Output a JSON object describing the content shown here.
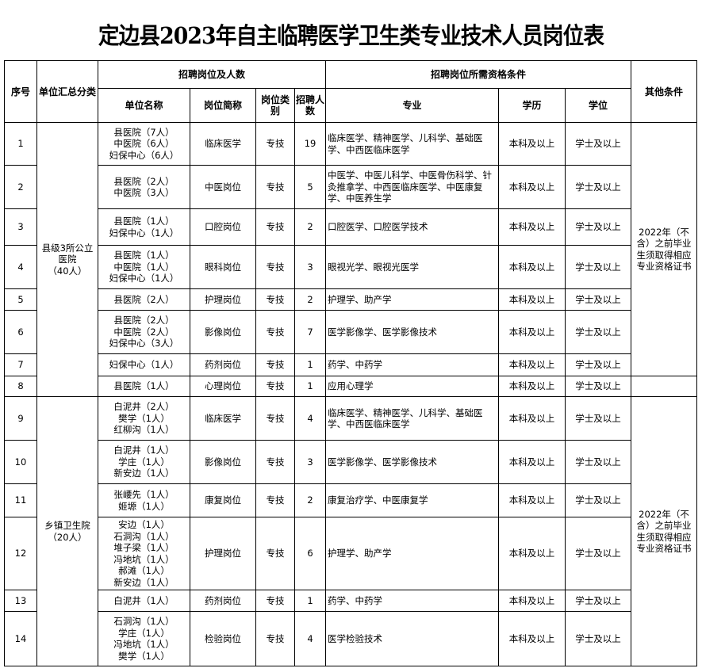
{
  "title": "定边县2023年自主临聘医学卫生类专业技术人员岗位表",
  "headers": {
    "seq": "序号",
    "group": "单位汇总分类",
    "recruit_group": "招聘岗位及人数",
    "unit": "单位名称",
    "post": "岗位简称",
    "type": "岗位类别",
    "count": "招聘人数",
    "req_group": "招聘岗位所需资格条件",
    "major": "专业",
    "education": "学历",
    "degree": "学位",
    "other": "其他条件"
  },
  "groups": [
    {
      "name": "县级3所公立医院（40人）",
      "lines": [
        "县级3所公立",
        "医院",
        "（40人）"
      ]
    },
    {
      "name": "乡镇卫生院（20人）",
      "lines": [
        "乡镇卫生院",
        "（20人）"
      ]
    }
  ],
  "other_conditions": [
    "2022年（不含）之前毕业生须取得相应专业资格证书",
    "",
    "2022年（不含）之前毕业生须取得相应专业资格证书"
  ],
  "rows": [
    {
      "seq": "1",
      "units": [
        "县医院（7人）",
        "中医院（6人）",
        "妇保中心（6人）"
      ],
      "post": "临床医学",
      "type": "专技",
      "count": "19",
      "major": "临床医学、精神医学、儿科学、基础医学、中西医临床医学",
      "education": "本科及以上",
      "degree": "学士及以上"
    },
    {
      "seq": "2",
      "units": [
        "县医院（2人）",
        "中医院（3人）"
      ],
      "post": "中医岗位",
      "type": "专技",
      "count": "5",
      "major": "中医学、中医儿科学、中医骨伤科学、针灸推拿学、中西医临床医学、中医康复学、中医养生学",
      "education": "本科及以上",
      "degree": "学士及以上"
    },
    {
      "seq": "3",
      "units": [
        "县医院（1人）",
        "妇保中心（1人）"
      ],
      "post": "口腔岗位",
      "type": "专技",
      "count": "2",
      "major": "口腔医学、口腔医学技术",
      "education": "本科及以上",
      "degree": "学士及以上"
    },
    {
      "seq": "4",
      "units": [
        "县医院（1人）",
        "中医院（1人）",
        "妇保中心（1人）"
      ],
      "post": "眼科岗位",
      "type": "专技",
      "count": "3",
      "major": "眼视光学、眼视光医学",
      "education": "本科及以上",
      "degree": "学士及以上"
    },
    {
      "seq": "5",
      "units": [
        "县医院（2人）"
      ],
      "post": "护理岗位",
      "type": "专技",
      "count": "2",
      "major": "护理学、助产学",
      "education": "本科及以上",
      "degree": "学士及以上"
    },
    {
      "seq": "6",
      "units": [
        "县医院（2人）",
        "中医院（2人）",
        "妇保中心（3人）"
      ],
      "post": "影像岗位",
      "type": "专技",
      "count": "7",
      "major": "医学影像学、医学影像技术",
      "education": "本科及以上",
      "degree": "学士及以上"
    },
    {
      "seq": "7",
      "units": [
        "妇保中心（1人）"
      ],
      "post": "药剂岗位",
      "type": "专技",
      "count": "1",
      "major": "药学、中药学",
      "education": "本科及以上",
      "degree": "学士及以上"
    },
    {
      "seq": "8",
      "units": [
        "县医院（1人）"
      ],
      "post": "心理岗位",
      "type": "专技",
      "count": "1",
      "major": "应用心理学",
      "education": "本科及以上",
      "degree": "学士及以上"
    },
    {
      "seq": "9",
      "units": [
        "白泥井（2人）",
        "樊学（1人）",
        "红柳沟（1人）"
      ],
      "post": "临床医学",
      "type": "专技",
      "count": "4",
      "major": "临床医学、精神医学、儿科学、基础医学、中西医临床医学",
      "education": "本科及以上",
      "degree": "学士及以上"
    },
    {
      "seq": "10",
      "units": [
        "白泥井（1人）",
        "学庄（1人）",
        "新安边（1人）"
      ],
      "post": "影像岗位",
      "type": "专技",
      "count": "3",
      "major": "医学影像学、医学影像技术",
      "education": "本科及以上",
      "degree": "学士及以上"
    },
    {
      "seq": "11",
      "units": [
        "张崾先（1人）",
        "姬塬（1人）"
      ],
      "post": "康复岗位",
      "type": "专技",
      "count": "2",
      "major": "康复治疗学、中医康复学",
      "education": "本科及以上",
      "degree": "学士及以上"
    },
    {
      "seq": "12",
      "units": [
        "安边（1人）",
        "石洞沟（1人）",
        "堆子梁（1人）",
        "冯地坑（1人）",
        "郝滩（1人）",
        "新安边（1人）"
      ],
      "post": "护理岗位",
      "type": "专技",
      "count": "6",
      "major": "护理学、助产学",
      "education": "本科及以上",
      "degree": "学士及以上"
    },
    {
      "seq": "13",
      "units": [
        "白泥井（1人）"
      ],
      "post": "药剂岗位",
      "type": "专技",
      "count": "1",
      "major": "药学、中药学",
      "education": "本科及以上",
      "degree": "学士及以上"
    },
    {
      "seq": "14",
      "units": [
        "石洞沟（1人）",
        "学庄（1人）",
        "冯地坑（1人）",
        "樊学（1人）"
      ],
      "post": "检验岗位",
      "type": "专技",
      "count": "4",
      "major": "医学检验技术",
      "education": "本科及以上",
      "degree": "学士及以上"
    }
  ]
}
